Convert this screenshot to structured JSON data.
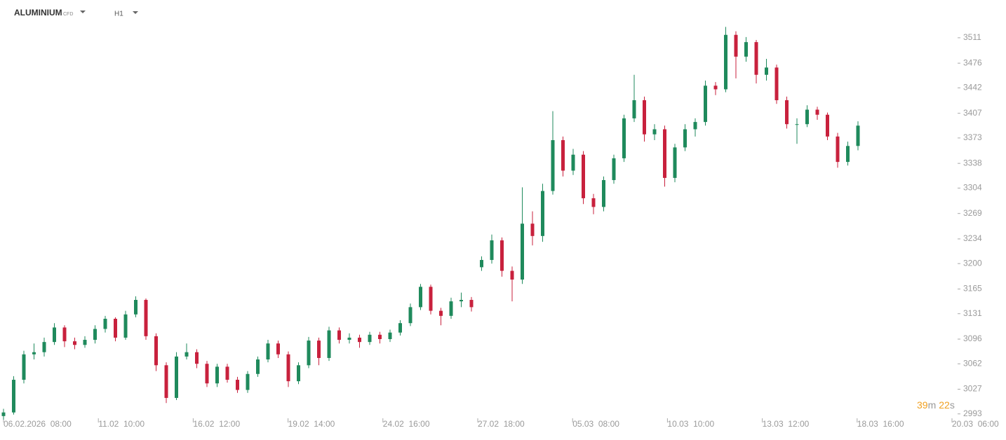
{
  "header": {
    "symbol": "ALUMINIUM",
    "symbol_type": "CFD",
    "timeframe": "H1"
  },
  "timer": {
    "minutes": "39",
    "minutes_unit": "m",
    "seconds": "22",
    "seconds_unit": "s"
  },
  "chart_data": {
    "type": "candlestick",
    "up_color": "#1f8a5c",
    "down_color": "#c8213d",
    "xticks": [
      "06.02.2026  08:00",
      "11.02  10:00",
      "16.02  12:00",
      "19.02  14:00",
      "24.02  16:00",
      "27.02  18:00",
      "05.03  08:00",
      "10.03  10:00",
      "13.03  12:00",
      "18.03  16:00",
      "20.03  06:00"
    ],
    "ylim": [
      2986,
      3563
    ],
    "yticks": [
      2993,
      3027,
      3062,
      3096,
      3131,
      3165,
      3200,
      3234,
      3269,
      3304,
      3338,
      3373,
      3407,
      3442,
      3476,
      3511
    ],
    "candles": [
      [
        2990,
        3000,
        2985,
        2995
      ],
      [
        2995,
        3045,
        2992,
        3040
      ],
      [
        3040,
        3080,
        3035,
        3075
      ],
      [
        3075,
        3090,
        3068,
        3078
      ],
      [
        3078,
        3098,
        3072,
        3092
      ],
      [
        3092,
        3118,
        3088,
        3112
      ],
      [
        3112,
        3115,
        3085,
        3093
      ],
      [
        3093,
        3098,
        3082,
        3088
      ],
      [
        3088,
        3100,
        3084,
        3095
      ],
      [
        3095,
        3115,
        3090,
        3110
      ],
      [
        3110,
        3128,
        3105,
        3124
      ],
      [
        3124,
        3126,
        3093,
        3098
      ],
      [
        3098,
        3135,
        3095,
        3130
      ],
      [
        3130,
        3155,
        3126,
        3150
      ],
      [
        3150,
        3152,
        3095,
        3100
      ],
      [
        3100,
        3104,
        3052,
        3060
      ],
      [
        3060,
        3064,
        3008,
        3015
      ],
      [
        3015,
        3078,
        3012,
        3072
      ],
      [
        3072,
        3090,
        3068,
        3078
      ],
      [
        3078,
        3082,
        3056,
        3062
      ],
      [
        3062,
        3066,
        3030,
        3035
      ],
      [
        3035,
        3062,
        3030,
        3058
      ],
      [
        3058,
        3062,
        3036,
        3040
      ],
      [
        3040,
        3044,
        3022,
        3026
      ],
      [
        3026,
        3052,
        3022,
        3048
      ],
      [
        3048,
        3072,
        3044,
        3068
      ],
      [
        3068,
        3095,
        3064,
        3090
      ],
      [
        3090,
        3094,
        3070,
        3075
      ],
      [
        3075,
        3079,
        3030,
        3038
      ],
      [
        3038,
        3064,
        3034,
        3060
      ],
      [
        3060,
        3099,
        3056,
        3094
      ],
      [
        3094,
        3098,
        3060,
        3070
      ],
      [
        3070,
        3113,
        3066,
        3108
      ],
      [
        3108,
        3112,
        3090,
        3095
      ],
      [
        3095,
        3104,
        3090,
        3098
      ],
      [
        3098,
        3102,
        3084,
        3092
      ],
      [
        3092,
        3106,
        3088,
        3102
      ],
      [
        3102,
        3106,
        3090,
        3096
      ],
      [
        3096,
        3109,
        3092,
        3105
      ],
      [
        3105,
        3122,
        3101,
        3118
      ],
      [
        3118,
        3145,
        3114,
        3140
      ],
      [
        3140,
        3172,
        3136,
        3168
      ],
      [
        3168,
        3171,
        3130,
        3135
      ],
      [
        3135,
        3139,
        3115,
        3128
      ],
      [
        3128,
        3153,
        3124,
        3148
      ],
      [
        3148,
        3160,
        3140,
        3150
      ],
      [
        3150,
        3154,
        3134,
        3140
      ],
      [
        3195,
        3210,
        3190,
        3205
      ],
      [
        3205,
        3240,
        3200,
        3232
      ],
      [
        3232,
        3236,
        3182,
        3190
      ],
      [
        3190,
        3196,
        3148,
        3178
      ],
      [
        3178,
        3305,
        3172,
        3255
      ],
      [
        3255,
        3272,
        3225,
        3238
      ],
      [
        3238,
        3310,
        3230,
        3300
      ],
      [
        3300,
        3410,
        3295,
        3370
      ],
      [
        3370,
        3375,
        3320,
        3328
      ],
      [
        3328,
        3358,
        3322,
        3350
      ],
      [
        3350,
        3355,
        3282,
        3290
      ],
      [
        3290,
        3296,
        3268,
        3278
      ],
      [
        3278,
        3320,
        3272,
        3315
      ],
      [
        3315,
        3350,
        3310,
        3345
      ],
      [
        3345,
        3405,
        3340,
        3400
      ],
      [
        3400,
        3460,
        3395,
        3425
      ],
      [
        3425,
        3430,
        3368,
        3378
      ],
      [
        3378,
        3392,
        3370,
        3385
      ],
      [
        3385,
        3390,
        3306,
        3318
      ],
      [
        3318,
        3365,
        3312,
        3360
      ],
      [
        3360,
        3392,
        3355,
        3385
      ],
      [
        3385,
        3400,
        3375,
        3395
      ],
      [
        3395,
        3452,
        3390,
        3445
      ],
      [
        3445,
        3450,
        3432,
        3440
      ],
      [
        3440,
        3526,
        3436,
        3515
      ],
      [
        3515,
        3520,
        3455,
        3485
      ],
      [
        3485,
        3512,
        3478,
        3505
      ],
      [
        3505,
        3508,
        3448,
        3460
      ],
      [
        3460,
        3482,
        3452,
        3470
      ],
      [
        3470,
        3474,
        3420,
        3425
      ],
      [
        3425,
        3430,
        3386,
        3392
      ],
      [
        3392,
        3400,
        3365,
        3392
      ],
      [
        3392,
        3418,
        3388,
        3412
      ],
      [
        3412,
        3416,
        3398,
        3405
      ],
      [
        3405,
        3408,
        3370,
        3375
      ],
      [
        3375,
        3380,
        3332,
        3340
      ],
      [
        3340,
        3368,
        3335,
        3362
      ],
      [
        3362,
        3396,
        3356,
        3390
      ]
    ]
  }
}
